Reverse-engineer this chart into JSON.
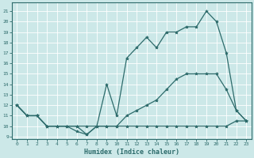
{
  "xlabel": "Humidex (Indice chaleur)",
  "bg_color": "#cce8e8",
  "line_color": "#2d6b6b",
  "grid_color": "#ffffff",
  "xlim": [
    -0.5,
    23.5
  ],
  "ylim": [
    8.8,
    21.8
  ],
  "xticks": [
    0,
    1,
    2,
    3,
    4,
    5,
    6,
    7,
    8,
    9,
    10,
    11,
    12,
    13,
    14,
    15,
    16,
    17,
    18,
    19,
    20,
    21,
    22,
    23
  ],
  "yticks": [
    9,
    10,
    11,
    12,
    13,
    14,
    15,
    16,
    17,
    18,
    19,
    20,
    21
  ],
  "line_min_x": [
    0,
    1,
    2,
    3,
    4,
    5,
    6,
    7,
    8,
    9,
    10,
    11,
    12,
    13,
    14,
    15,
    16,
    17,
    18,
    19,
    20,
    21,
    22,
    23
  ],
  "line_min_y": [
    12,
    11,
    11,
    10,
    10,
    10,
    9.5,
    9.2,
    10,
    10,
    10,
    10,
    10,
    10,
    10,
    10,
    10,
    10,
    10,
    10,
    10,
    10,
    10.5,
    10.5
  ],
  "line_avg_x": [
    0,
    1,
    2,
    3,
    4,
    5,
    6,
    7,
    8,
    9,
    10,
    11,
    12,
    13,
    14,
    15,
    16,
    17,
    18,
    19,
    20,
    21,
    22,
    23
  ],
  "line_avg_y": [
    12,
    11,
    11,
    10,
    10,
    10,
    10,
    10,
    10,
    10,
    10,
    11,
    11.5,
    12,
    12.5,
    13.5,
    14.5,
    15,
    15,
    15,
    15,
    13.5,
    11.5,
    10.5
  ],
  "line_max_x": [
    0,
    1,
    2,
    3,
    4,
    5,
    6,
    7,
    8,
    9,
    10,
    11,
    12,
    13,
    14,
    15,
    16,
    17,
    18,
    19,
    20,
    21,
    22,
    23
  ],
  "line_max_y": [
    12,
    11,
    11,
    10,
    10,
    10,
    10,
    9.2,
    10,
    14,
    11,
    16.5,
    17.5,
    18.5,
    17.5,
    19,
    19,
    19.5,
    19.5,
    21,
    20,
    17,
    11.5,
    10.5
  ]
}
